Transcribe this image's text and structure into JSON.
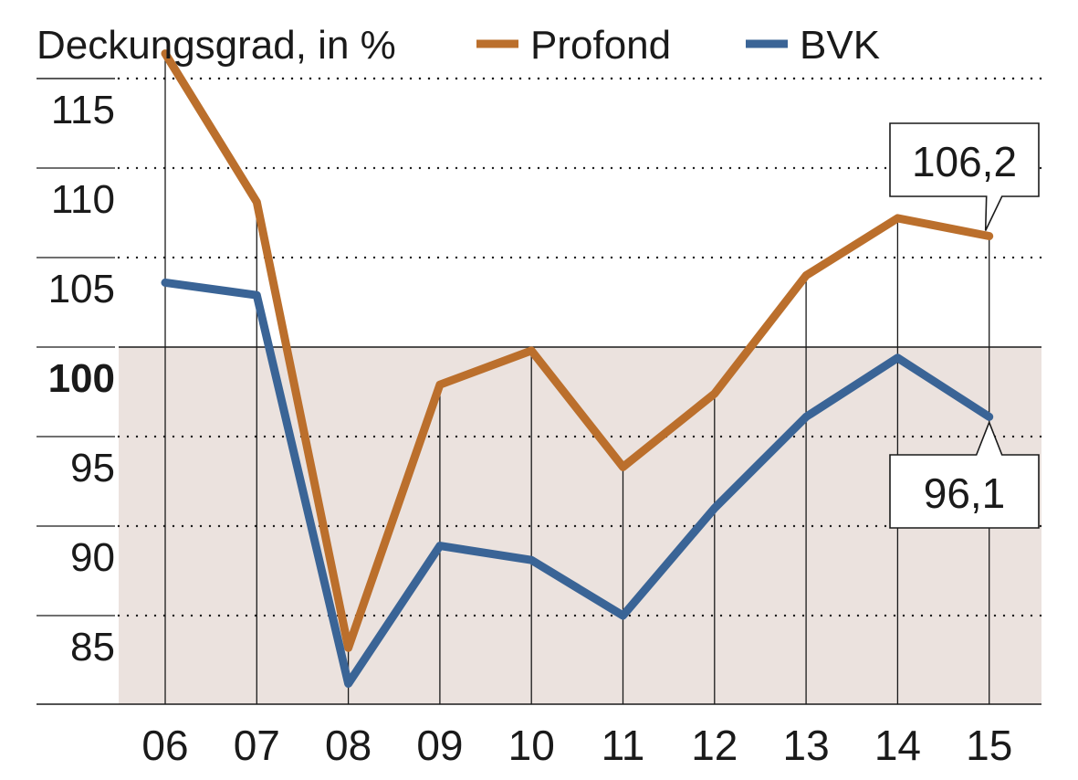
{
  "chart_data": {
    "type": "line",
    "title": "Deckungsgrad, in %",
    "categories": [
      "06",
      "07",
      "08",
      "09",
      "10",
      "11",
      "12",
      "13",
      "14",
      "15"
    ],
    "ylim": [
      80,
      119
    ],
    "yticks": [
      {
        "value": 85,
        "label": "85",
        "bold": false
      },
      {
        "value": 90,
        "label": "90",
        "bold": false
      },
      {
        "value": 95,
        "label": "95",
        "bold": false
      },
      {
        "value": 100,
        "label": "100",
        "bold": true
      },
      {
        "value": 105,
        "label": "105",
        "bold": false
      },
      {
        "value": 110,
        "label": "110",
        "bold": false
      },
      {
        "value": 115,
        "label": "115",
        "bold": false
      }
    ],
    "grid": true,
    "shaded_below": 100,
    "colors": {
      "profond": "#bb6f2c",
      "bvk": "#3a6496",
      "shade": "#ebe2de",
      "axis": "#1a1a1a"
    },
    "series": [
      {
        "name": "Profond",
        "key": "profond",
        "values": [
          116.4,
          108.1,
          83.2,
          97.9,
          99.8,
          93.3,
          97.4,
          104.0,
          107.2,
          106.2
        ]
      },
      {
        "name": "BVK",
        "key": "bvk",
        "values": [
          103.6,
          102.9,
          81.2,
          88.9,
          88.1,
          85.0,
          91.0,
          96.1,
          99.4,
          96.1
        ]
      }
    ],
    "callouts": [
      {
        "series": "profond",
        "index": 9,
        "label": "106,2",
        "position": "above"
      },
      {
        "series": "bvk",
        "index": 9,
        "label": "96,1",
        "position": "below"
      }
    ]
  }
}
